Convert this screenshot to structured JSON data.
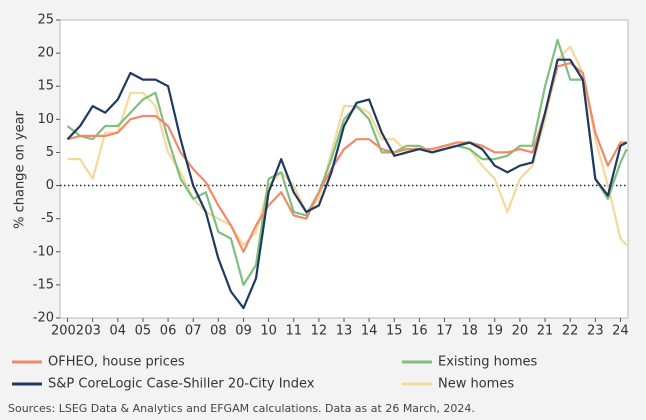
{
  "chart_data": {
    "type": "line",
    "y_label": "% change on year",
    "source": "Sources: LSEG Data & Analytics and EFGAM calculations. Data as at 26 March, 2024.",
    "x": [
      2002,
      2002.5,
      2003,
      2003.5,
      2004,
      2004.5,
      2005,
      2005.5,
      2006,
      2006.5,
      2007,
      2007.5,
      2008,
      2008.5,
      2009,
      2009.5,
      2010,
      2010.5,
      2011,
      2011.5,
      2012,
      2012.5,
      2013,
      2013.5,
      2014,
      2014.5,
      2015,
      2015.5,
      2016,
      2016.5,
      2017,
      2017.5,
      2018,
      2018.5,
      2019,
      2019.5,
      2020,
      2020.5,
      2021,
      2021.5,
      2022,
      2022.5,
      2023,
      2023.5,
      2024,
      2024.25
    ],
    "series": [
      {
        "name": "OFHEO, house prices",
        "color": "#f08a6a",
        "values": [
          7,
          7.5,
          7.5,
          7.5,
          8,
          10,
          10.5,
          10.5,
          9,
          5,
          2.5,
          0.5,
          -3,
          -6,
          -10,
          -6,
          -3,
          -1,
          -4.5,
          -5,
          -1,
          2.5,
          5.5,
          7,
          7,
          5.5,
          5,
          5.5,
          5.5,
          5.5,
          6,
          6.5,
          6.5,
          6,
          5,
          5,
          5.5,
          5,
          11,
          18,
          18.5,
          17,
          8,
          3,
          6.5,
          6.5
        ]
      },
      {
        "name": "Existing homes",
        "color": "#7fbf7f",
        "values": [
          9,
          7.5,
          7,
          9,
          9,
          11,
          13,
          14,
          7,
          1,
          -2,
          -1,
          -7,
          -8,
          -15,
          -12,
          1,
          2,
          -4,
          -4.5,
          -1,
          4,
          10,
          12,
          10,
          5,
          5,
          6,
          6,
          5,
          5.5,
          6,
          5.5,
          4,
          4,
          4.5,
          6,
          6,
          15,
          22,
          16,
          16,
          1,
          -2,
          3.5,
          5.5
        ]
      },
      {
        "name": "S&P CoreLogic Case-Shiller 20-City Index",
        "color": "#1f3a5f",
        "values": [
          7,
          9,
          12,
          11,
          13,
          17,
          16,
          16,
          15,
          7,
          0,
          -4,
          -11,
          -16,
          -18.5,
          -14,
          -1,
          4,
          -1,
          -4,
          -3,
          2,
          9,
          12.5,
          13,
          8,
          4.5,
          5,
          5.5,
          5,
          5.5,
          6,
          6.5,
          5.5,
          3,
          2,
          3,
          3.5,
          11,
          19,
          19,
          16,
          1,
          -1.5,
          6,
          6.5
        ]
      },
      {
        "name": "New homes",
        "color": "#f5d99a",
        "values": [
          4,
          4,
          1,
          8,
          8,
          14,
          14,
          12,
          5,
          2,
          -2,
          -4,
          -5,
          -6,
          -9,
          -7,
          0,
          2,
          0,
          -4,
          -2,
          5,
          12,
          12,
          11,
          7,
          7,
          5,
          6,
          5,
          6,
          6,
          5.5,
          3,
          1,
          -4,
          1,
          3,
          10,
          19,
          21,
          17,
          7,
          0,
          -8,
          -9
        ]
      }
    ],
    "xlim": [
      2001.7,
      2024.3
    ],
    "xticks": [
      2002,
      {
        "value": 2003,
        "label": "03"
      },
      {
        "value": 2004,
        "label": "04"
      },
      {
        "value": 2005,
        "label": "05"
      },
      {
        "value": 2006,
        "label": "06"
      },
      {
        "value": 2007,
        "label": "07"
      },
      {
        "value": 2008,
        "label": "08"
      },
      {
        "value": 2009,
        "label": "09"
      },
      {
        "value": 2010,
        "label": "10"
      },
      {
        "value": 2011,
        "label": "11"
      },
      {
        "value": 2012,
        "label": "12"
      },
      {
        "value": 2013,
        "label": "13"
      },
      {
        "value": 2014,
        "label": "14"
      },
      {
        "value": 2015,
        "label": "15"
      },
      {
        "value": 2016,
        "label": "16"
      },
      {
        "value": 2017,
        "label": "17"
      },
      {
        "value": 2018,
        "label": "18"
      },
      {
        "value": 2019,
        "label": "19"
      },
      {
        "value": 2020,
        "label": "20"
      },
      {
        "value": 2021,
        "label": "21"
      },
      {
        "value": 2022,
        "label": "22"
      },
      {
        "value": 2023,
        "label": "23"
      },
      {
        "value": 2024,
        "label": "24"
      }
    ],
    "ylim": [
      -20,
      25
    ],
    "yticks": [
      -20,
      -15,
      -10,
      -5,
      0,
      5,
      10,
      15,
      20,
      25
    ],
    "grid": false
  }
}
